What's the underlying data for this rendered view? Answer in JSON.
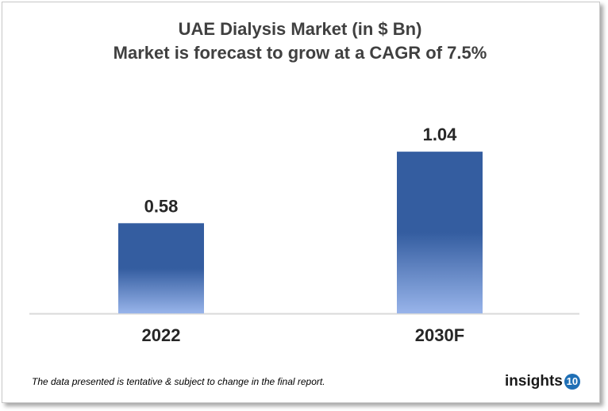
{
  "chart_data": {
    "type": "bar",
    "title": "UAE Dialysis Market (in $ Bn)",
    "subtitle": "Market is forecast to grow at a CAGR of 7.5%",
    "categories": [
      "2022",
      "2030F"
    ],
    "values": [
      0.58,
      1.04
    ],
    "data_labels": [
      "0.58",
      "1.04"
    ],
    "xlabel": "",
    "ylabel": "",
    "grid": false,
    "colors": {
      "bar_top": "#345DA0",
      "bar_bottom": "#98B4EA",
      "axis": "#d9d9d9"
    }
  },
  "footnote": "The data presented is tentative & subject to change in the final report.",
  "logo": {
    "text": "insights",
    "badge": "10"
  }
}
